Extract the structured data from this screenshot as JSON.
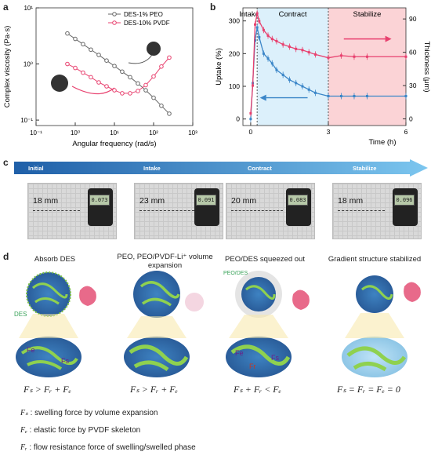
{
  "panels": {
    "a": "a",
    "b": "b",
    "c": "c",
    "d": "d"
  },
  "chart_data": [
    {
      "type": "line",
      "xlabel": "Angular frequency (rad/s)",
      "ylabel": "Complex viscosity (Pa·s)",
      "xscale": "log",
      "yscale": "log",
      "xlim": [
        0.1,
        1000
      ],
      "ylim": [
        0.08,
        10
      ],
      "xticks": [
        "10⁻¹",
        "10⁰",
        "10¹",
        "10²",
        "10³"
      ],
      "yticks": [
        "10⁻¹",
        "10⁰",
        "10¹"
      ],
      "legend_position": "top-right",
      "series": [
        {
          "name": "DES-1% PEO",
          "color": "#666666",
          "x": [
            0.63,
            1.0,
            1.58,
            2.51,
            3.98,
            6.31,
            10,
            15.8,
            25.1,
            39.8,
            63.1,
            100,
            158,
            251
          ],
          "y": [
            3.5,
            2.8,
            2.25,
            1.8,
            1.45,
            1.15,
            0.92,
            0.73,
            0.58,
            0.45,
            0.34,
            0.25,
            0.18,
            0.13
          ]
        },
        {
          "name": "DES-10% PVDF",
          "color": "#e8416f",
          "x": [
            0.63,
            1.0,
            1.58,
            2.51,
            3.98,
            6.31,
            10,
            15.8,
            25.1,
            39.8,
            63.1,
            100,
            158,
            251
          ],
          "y": [
            1.0,
            0.85,
            0.7,
            0.58,
            0.47,
            0.4,
            0.34,
            0.3,
            0.3,
            0.33,
            0.42,
            0.6,
            0.9,
            1.3
          ]
        }
      ]
    },
    {
      "type": "line",
      "xlabel": "Time (h)",
      "ylabel": "Uptake (%)",
      "y2label": "Thickness (μm)",
      "xlim": [
        -0.3,
        6
      ],
      "ylim": [
        -20,
        340
      ],
      "y2lim": [
        -6,
        100
      ],
      "xticks": [
        0,
        3,
        6
      ],
      "yticks": [
        0,
        100,
        200,
        300
      ],
      "y2ticks": [
        0,
        30,
        60,
        90
      ],
      "regions": [
        {
          "label": "Intake",
          "from": 0,
          "to": 0.25,
          "color": "#ffffff"
        },
        {
          "label": "Contract",
          "from": 0.25,
          "to": 3,
          "color": "#dcf0fb"
        },
        {
          "label": "Stabilize",
          "from": 3,
          "to": 6,
          "color": "#fbd3d6"
        }
      ],
      "series": [
        {
          "name": "Uptake",
          "axis": "left",
          "color": "#3b86c8",
          "x": [
            0,
            0.08,
            0.17,
            0.25,
            0.33,
            0.5,
            0.67,
            0.83,
            1.0,
            1.25,
            1.5,
            1.75,
            2.0,
            2.25,
            2.5,
            3.0,
            3.5,
            4.0,
            4.5,
            6.0
          ],
          "y": [
            0,
            110,
            240,
            280,
            250,
            200,
            185,
            170,
            150,
            135,
            120,
            110,
            100,
            90,
            80,
            70,
            70,
            70,
            70,
            70
          ]
        },
        {
          "name": "Thickness",
          "axis": "right",
          "color": "#e8416f",
          "x": [
            0,
            0.08,
            0.17,
            0.25,
            0.33,
            0.5,
            0.67,
            0.83,
            1.0,
            1.25,
            1.5,
            1.75,
            2.0,
            2.25,
            2.5,
            3.0,
            3.5,
            4.0,
            4.5,
            6.0
          ],
          "y": [
            5,
            30,
            85,
            95,
            88,
            80,
            75,
            72,
            70,
            67,
            65,
            63,
            62,
            60,
            58,
            55,
            57,
            56,
            56,
            56
          ]
        }
      ]
    }
  ],
  "stages": [
    "Initial",
    "Intake",
    "Contract",
    "Stabilize"
  ],
  "photos": [
    {
      "measure": "18 mm",
      "lcd": "0.073"
    },
    {
      "measure": "23 mm",
      "lcd": "0.091"
    },
    {
      "measure": "20 mm",
      "lcd": "0.083"
    },
    {
      "measure": "18 mm",
      "lcd": "0.096"
    }
  ],
  "d_titles": [
    "Absorb DES",
    "PEO, PEO/PVDF-Li⁺ volume expansion",
    "PEO/DES squeezed out",
    "Gradient structure stabilized"
  ],
  "d_labels": {
    "des": "DES",
    "peo_des": "PEO/DES",
    "fe": "Fe",
    "fr": "Fr",
    "fs": "Fs"
  },
  "equations": [
    "Fₛ > Fᵣ + Fₑ",
    "Fₛ > Fᵣ + Fₑ",
    "Fₛ + Fᵣ < Fₑ",
    "Fₛ = Fᵣ = Fₑ = 0"
  ],
  "legend": [
    {
      "sym": "Fₛ",
      "text": ": swelling force by volume expansion"
    },
    {
      "sym": "Fₑ",
      "text": ": elastic force by PVDF skeleton"
    },
    {
      "sym": "Fᵣ",
      "text": ": flow resistance force of swelling/swelled phase"
    }
  ],
  "colors": {
    "pink": "#e8416f",
    "gray": "#666666",
    "blue": "#3b86c8",
    "green": "#8fd14f"
  }
}
